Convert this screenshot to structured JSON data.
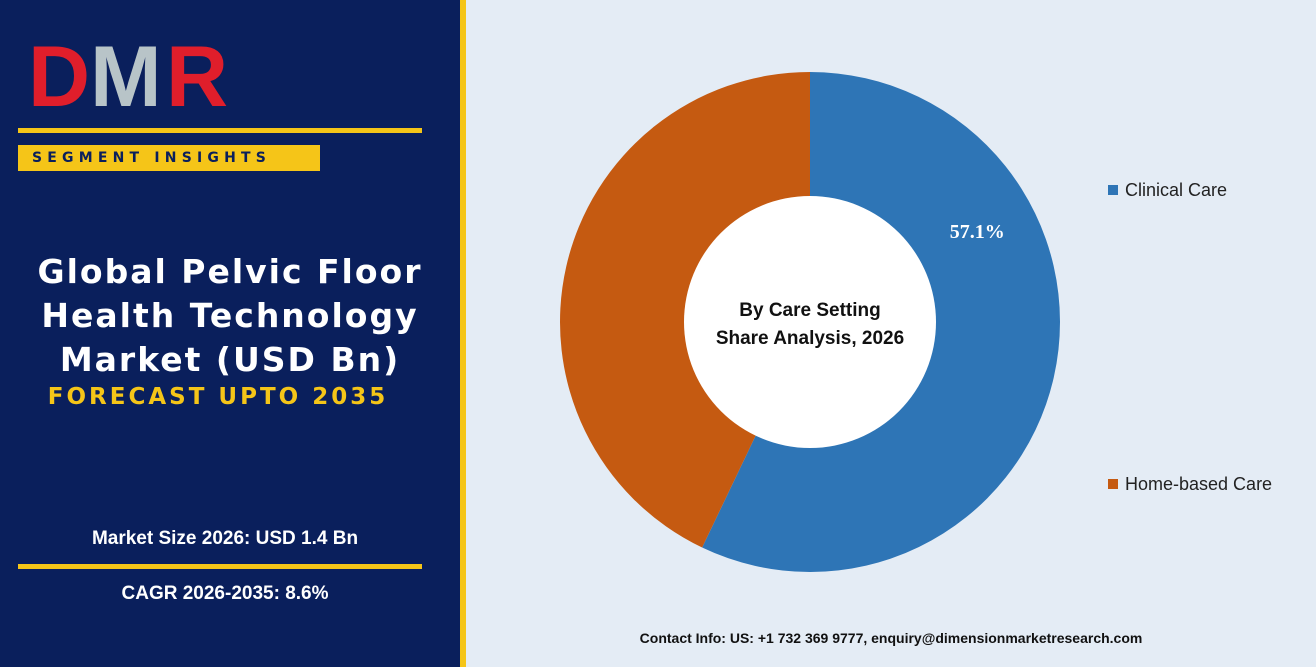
{
  "brand": {
    "logo_text": "DMR",
    "badge": "SEGMENT INSIGHTS"
  },
  "report": {
    "title_lines": [
      "Global Pelvic Floor",
      "Health Technology",
      "Market (USD Bn)"
    ],
    "forecast": "FORECAST UPTO 2035",
    "market_size": "Market Size 2026: USD 1.4 Bn",
    "cagr": "CAGR 2026-2035: 8.6%"
  },
  "contact": "Contact Info: US: +1 732 369 9777, enquiry@dimensionmarketresearch.com",
  "colors": {
    "panel_navy": "#0a1f5c",
    "accent_gold": "#f5c518",
    "logo_red": "#e01e2b",
    "logo_grey": "#b8c4c8",
    "chart_bg": "#e4ecf5"
  },
  "chart_data": {
    "type": "pie",
    "style": "donut",
    "center_label": [
      "By Care Setting",
      "Share Analysis, 2026"
    ],
    "categories": [
      "Clinical Care",
      "Home-based Care"
    ],
    "values": [
      57.1,
      42.9
    ],
    "colors": [
      "#2e75b6",
      "#c55a11"
    ],
    "data_labels": [
      "57.1%",
      ""
    ],
    "legend_position": "right"
  }
}
